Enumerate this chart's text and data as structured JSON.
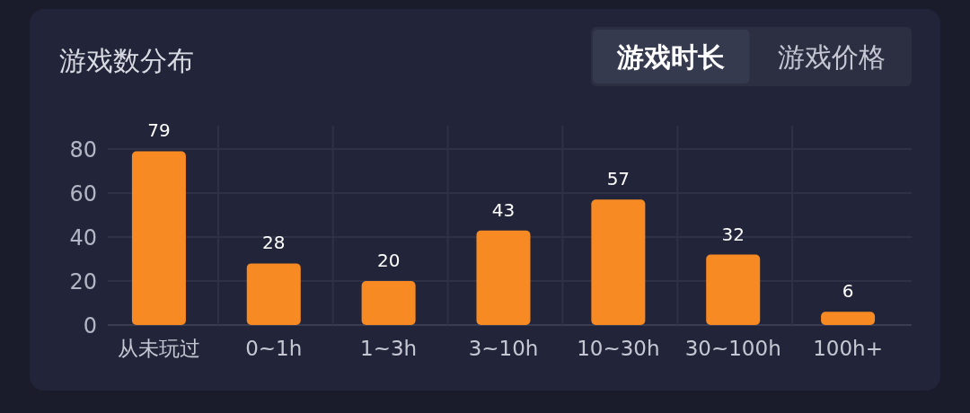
{
  "chart_data": {
    "type": "bar",
    "title": "游戏数分布",
    "categories": [
      "从未玩过",
      "0~1h",
      "1~3h",
      "3~10h",
      "10~30h",
      "30~100h",
      "100h+"
    ],
    "values": [
      79,
      28,
      20,
      43,
      57,
      32,
      6
    ],
    "color": "#f88a24",
    "ylim": [
      0,
      80
    ],
    "yticks": [
      0,
      20,
      40,
      60,
      80
    ],
    "grid": true,
    "data_labels": true,
    "annotations": [
      "游戏时长",
      "游戏价格"
    ]
  }
}
